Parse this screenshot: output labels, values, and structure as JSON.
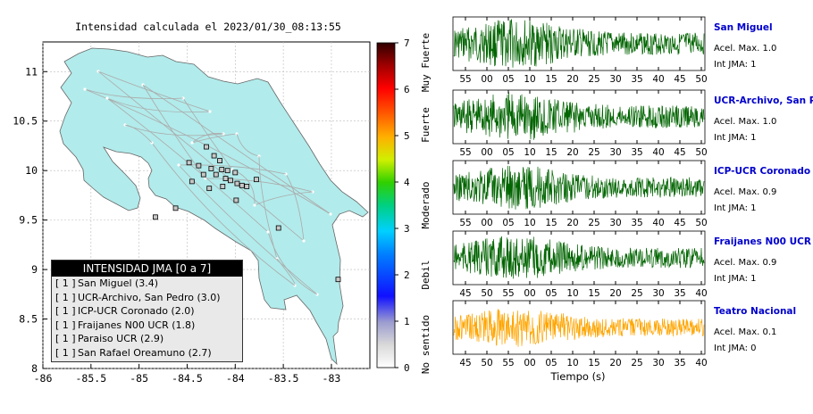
{
  "map": {
    "title": "Intensidad calculada el 2023/01/30_08:13:55",
    "lat_ticks": [
      "11",
      "10.5",
      "10",
      "9.5",
      "9",
      "8.5",
      "8"
    ],
    "lon_ticks": [
      "-86",
      "-85.5",
      "-85",
      "-84.5",
      "-84",
      "-83.5",
      "-83"
    ],
    "land_color": "#b2ebeb",
    "station_markers": [
      {
        "lon": -84.3,
        "lat": 10.24
      },
      {
        "lon": -84.22,
        "lat": 10.15
      },
      {
        "lon": -84.16,
        "lat": 10.1
      },
      {
        "lon": -84.48,
        "lat": 10.08
      },
      {
        "lon": -84.38,
        "lat": 10.05
      },
      {
        "lon": -84.25,
        "lat": 10.02
      },
      {
        "lon": -84.14,
        "lat": 10.01
      },
      {
        "lon": -84.08,
        "lat": 10.0
      },
      {
        "lon": -84.0,
        "lat": 9.98
      },
      {
        "lon": -84.2,
        "lat": 9.96
      },
      {
        "lon": -84.33,
        "lat": 9.96
      },
      {
        "lon": -84.45,
        "lat": 9.89
      },
      {
        "lon": -84.1,
        "lat": 9.92
      },
      {
        "lon": -84.05,
        "lat": 9.9
      },
      {
        "lon": -83.98,
        "lat": 9.87
      },
      {
        "lon": -83.93,
        "lat": 9.85
      },
      {
        "lon": -83.88,
        "lat": 9.84
      },
      {
        "lon": -84.13,
        "lat": 9.84
      },
      {
        "lon": -84.27,
        "lat": 9.82
      },
      {
        "lon": -83.78,
        "lat": 9.91
      },
      {
        "lon": -83.99,
        "lat": 9.7
      },
      {
        "lon": -84.62,
        "lat": 9.62
      },
      {
        "lon": -84.83,
        "lat": 9.53
      },
      {
        "lon": -83.55,
        "lat": 9.42
      },
      {
        "lon": -82.93,
        "lat": 8.9
      }
    ],
    "legend": {
      "title": "INTENSIDAD JMA [0 a 7]",
      "rows": [
        {
          "level": "[ 1 ]",
          "label": "San Miguel (3.4)"
        },
        {
          "level": "[ 1 ]",
          "label": "UCR-Archivo, San Pedro (3.0)"
        },
        {
          "level": "[ 1 ]",
          "label": "ICP-UCR Coronado (2.0)"
        },
        {
          "level": "[ 1 ]",
          "label": "Fraijanes N00 UCR (1.8)"
        },
        {
          "level": "[ 1 ]",
          "label": "Paraiso UCR (2.9)"
        },
        {
          "level": "[ 1 ]",
          "label": "San Rafael Oreamuno (2.7)"
        }
      ]
    }
  },
  "colorbar": {
    "ticks": [
      "0",
      "1",
      "2",
      "3",
      "4",
      "5",
      "6",
      "7"
    ],
    "labels": [
      "No sentido",
      "Debil",
      "Moderado",
      "Fuerte",
      "Muy Fuerte"
    ]
  },
  "chart_data": [
    {
      "type": "line",
      "name": "San Miguel",
      "accel_label": "Acel. Max. 1.0",
      "int_label": "Int JMA: 1",
      "x_ticks": [
        "55",
        "00",
        "05",
        "10",
        "15",
        "20",
        "25",
        "30",
        "35",
        "40",
        "45",
        "50"
      ],
      "color": "#006400",
      "peak": 1.0
    },
    {
      "type": "line",
      "name": "UCR-Archivo, San Pedro",
      "accel_label": "Acel. Max. 1.0",
      "int_label": "Int JMA: 1",
      "x_ticks": [
        "55",
        "00",
        "05",
        "10",
        "15",
        "20",
        "25",
        "30",
        "35",
        "40",
        "45",
        "50"
      ],
      "color": "#006400",
      "peak": 1.0
    },
    {
      "type": "line",
      "name": "ICP-UCR Coronado",
      "accel_label": "Acel. Max. 0.9",
      "int_label": "Int JMA: 1",
      "x_ticks": [
        "55",
        "00",
        "05",
        "10",
        "15",
        "20",
        "25",
        "30",
        "35",
        "40",
        "45",
        "50"
      ],
      "color": "#006400",
      "peak": 0.9
    },
    {
      "type": "line",
      "name": "Fraijanes N00 UCR",
      "accel_label": "Acel. Max. 0.9",
      "int_label": "Int JMA: 1",
      "x_ticks": [
        "45",
        "50",
        "55",
        "00",
        "05",
        "10",
        "15",
        "20",
        "25",
        "30",
        "35",
        "40"
      ],
      "color": "#006400",
      "peak": 0.9
    },
    {
      "type": "line",
      "name": "Teatro Nacional",
      "accel_label": "Acel. Max. 0.1",
      "int_label": "Int JMA: 0",
      "x_ticks": [
        "45",
        "50",
        "55",
        "00",
        "05",
        "10",
        "15",
        "20",
        "25",
        "30",
        "35",
        "40"
      ],
      "color": "#ffa500",
      "peak": 0.1
    }
  ],
  "x_axis_label": "Tiempo (s)"
}
